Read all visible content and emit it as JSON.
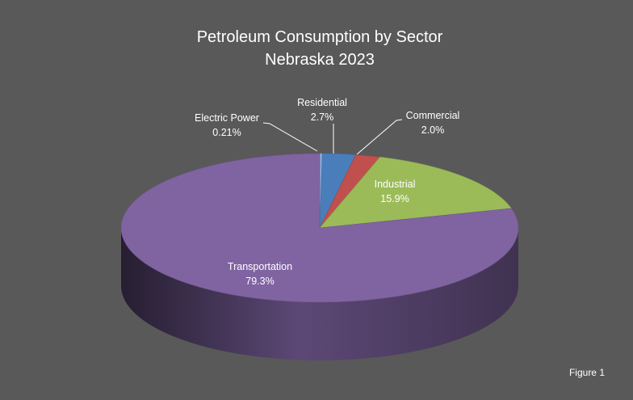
{
  "chart_data": {
    "type": "pie",
    "title": "Petroleum Consumption by Sector",
    "subtitle": "Nebraska  2023",
    "unit": "%",
    "slices": [
      {
        "name": "Electric Power",
        "value": 0.21,
        "label": "0.21%",
        "color": "#8fb0dd"
      },
      {
        "name": "Residential",
        "value": 2.7,
        "label": "2.7%",
        "color": "#4a7ebb"
      },
      {
        "name": "Commercial",
        "value": 2.0,
        "label": "2.0%",
        "color": "#c0504d"
      },
      {
        "name": "Industrial",
        "value": 15.9,
        "label": "15.9%",
        "color": "#9bbb59"
      },
      {
        "name": "Transportation",
        "value": 79.3,
        "label": "79.3%",
        "color": "#8064a2"
      }
    ],
    "legend": "none",
    "three_d": true
  },
  "figure_label": "Figure 1",
  "colors": {
    "background": "#595959",
    "text": "#ffffff",
    "leader_line": "#ffffff"
  }
}
